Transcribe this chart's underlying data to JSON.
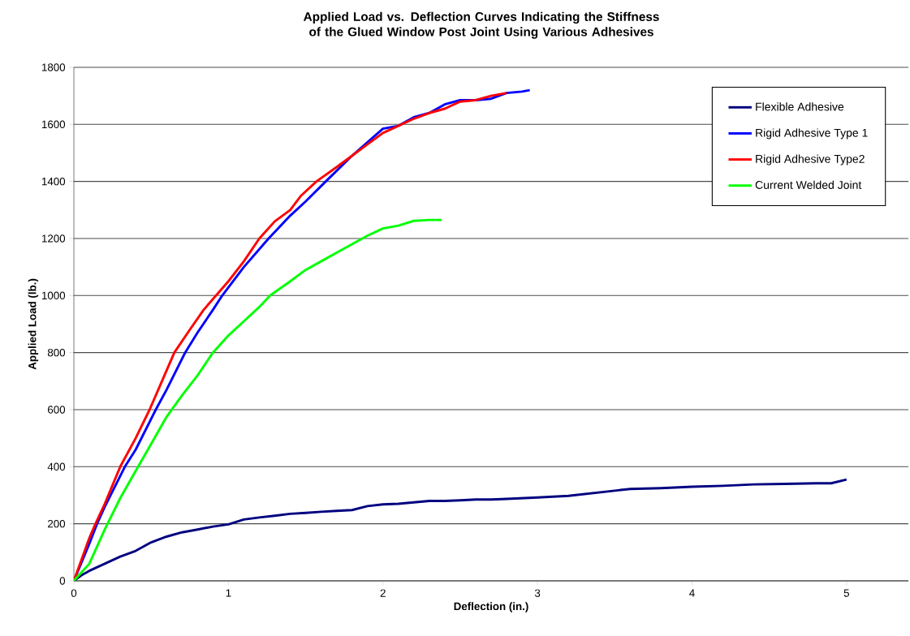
{
  "chart_data": {
    "type": "line",
    "title": "Applied Load vs. Deflection Curves Indicating the Stiffness of the Glued Window Post Joint Using Various Adhesives",
    "xlabel": "Deflection (in.)",
    "ylabel": "Applied Load (lb.)",
    "xlim": [
      0,
      5.4
    ],
    "ylim": [
      0,
      1800
    ],
    "xticks": [
      0,
      1,
      2,
      3,
      4,
      5
    ],
    "yticks": [
      0,
      200,
      400,
      600,
      800,
      1000,
      1200,
      1400,
      1600,
      1800
    ],
    "grid": "y",
    "legend": "top right",
    "series": [
      {
        "name": "Flexible Adhesive",
        "color": "#000080",
        "x": [
          0,
          0.05,
          0.1,
          0.2,
          0.3,
          0.4,
          0.5,
          0.6,
          0.7,
          0.8,
          0.9,
          1.0,
          1.1,
          1.2,
          1.3,
          1.4,
          1.5,
          1.6,
          1.7,
          1.8,
          1.9,
          2.0,
          2.1,
          2.2,
          2.3,
          2.4,
          2.5,
          2.6,
          2.7,
          2.8,
          3.0,
          3.2,
          3.4,
          3.6,
          3.8,
          4.0,
          4.2,
          4.4,
          4.6,
          4.8,
          4.9,
          5.0
        ],
        "values": [
          0,
          20,
          35,
          60,
          85,
          105,
          135,
          155,
          170,
          180,
          190,
          198,
          215,
          222,
          228,
          235,
          238,
          242,
          245,
          248,
          262,
          268,
          270,
          275,
          280,
          280,
          282,
          285,
          285,
          287,
          292,
          298,
          310,
          322,
          325,
          330,
          333,
          338,
          340,
          342,
          342,
          355
        ]
      },
      {
        "name": "Rigid Adhesive Type 1",
        "color": "#0000ff",
        "x": [
          0,
          0.1,
          0.15,
          0.2,
          0.33,
          0.4,
          0.53,
          0.6,
          0.72,
          0.8,
          0.9,
          0.96,
          1.1,
          1.26,
          1.4,
          1.5,
          1.63,
          1.8,
          2.0,
          2.1,
          2.2,
          2.3,
          2.4,
          2.5,
          2.6,
          2.7,
          2.8,
          2.9,
          2.95
        ],
        "values": [
          0,
          130,
          200,
          260,
          400,
          460,
          600,
          670,
          800,
          870,
          950,
          1000,
          1100,
          1200,
          1280,
          1330,
          1400,
          1490,
          1585,
          1595,
          1625,
          1640,
          1670,
          1685,
          1685,
          1690,
          1710,
          1715,
          1720
        ]
      },
      {
        "name": "Rigid Adhesive Type2",
        "color": "#ff0000",
        "x": [
          0,
          0.1,
          0.14,
          0.2,
          0.3,
          0.4,
          0.49,
          0.57,
          0.65,
          0.75,
          0.84,
          0.92,
          1.0,
          1.1,
          1.2,
          1.3,
          1.4,
          1.47,
          1.57,
          1.7,
          1.8,
          1.9,
          2.0,
          2.1,
          2.2,
          2.3,
          2.4,
          2.5,
          2.6,
          2.7,
          2.8
        ],
        "values": [
          0,
          150,
          200,
          270,
          400,
          500,
          600,
          700,
          800,
          880,
          950,
          1000,
          1050,
          1120,
          1200,
          1260,
          1300,
          1350,
          1400,
          1450,
          1490,
          1530,
          1570,
          1595,
          1620,
          1640,
          1655,
          1680,
          1685,
          1700,
          1710
        ]
      },
      {
        "name": "Current Welded Joint",
        "color": "#00ff00",
        "x": [
          0,
          0.1,
          0.2,
          0.3,
          0.4,
          0.5,
          0.6,
          0.7,
          0.8,
          0.9,
          1.0,
          1.1,
          1.2,
          1.27,
          1.4,
          1.5,
          1.6,
          1.7,
          1.8,
          1.9,
          2.0,
          2.1,
          2.2,
          2.3,
          2.38
        ],
        "values": [
          0,
          60,
          180,
          290,
          385,
          480,
          575,
          650,
          720,
          800,
          860,
          910,
          960,
          1000,
          1050,
          1090,
          1120,
          1150,
          1180,
          1210,
          1235,
          1245,
          1262,
          1265,
          1265
        ]
      }
    ]
  }
}
